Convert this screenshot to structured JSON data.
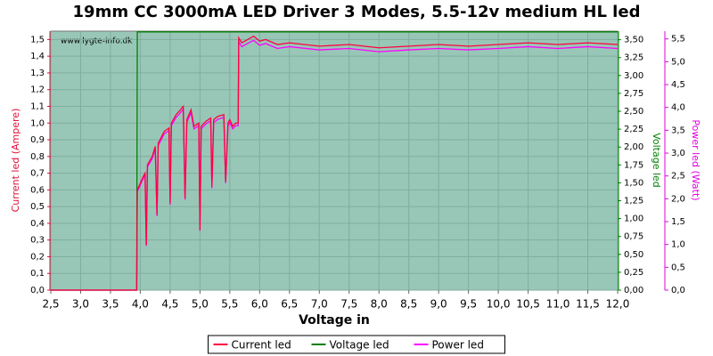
{
  "chart_data": {
    "type": "line",
    "title": "19mm CC 3000mA LED Driver 3 Modes, 5.5-12v medium HL led",
    "annotation": "www.lygte-info.dk",
    "x_label": "Voltage in",
    "y_label": "Current led (Ampere)",
    "y2_label": "Voltage led",
    "y3_label": "Power led (Watt)",
    "x": [
      2.5,
      3.94,
      3.95,
      4.0,
      4.05,
      4.08,
      4.1,
      4.12,
      4.2,
      4.25,
      4.28,
      4.3,
      4.33,
      4.4,
      4.48,
      4.5,
      4.52,
      4.6,
      4.65,
      4.72,
      4.75,
      4.78,
      4.85,
      4.9,
      4.98,
      5.0,
      5.02,
      5.1,
      5.18,
      5.2,
      5.23,
      5.3,
      5.4,
      5.43,
      5.47,
      5.5,
      5.55,
      5.6,
      5.64,
      5.65,
      5.7,
      5.8,
      5.9,
      6.0,
      6.1,
      6.3,
      6.5,
      7.0,
      7.5,
      8.0,
      8.5,
      9.0,
      9.5,
      10.0,
      10.5,
      11.0,
      11.5,
      12.0
    ],
    "series": [
      {
        "name": "Current led",
        "color": "#ff0040",
        "axis": "y",
        "values": [
          0,
          0,
          0.6,
          0.64,
          0.68,
          0.7,
          0.27,
          0.75,
          0.8,
          0.86,
          0.45,
          0.88,
          0.9,
          0.95,
          0.97,
          0.52,
          1.0,
          1.05,
          1.07,
          1.1,
          0.55,
          1.02,
          1.08,
          0.98,
          1.0,
          0.36,
          0.98,
          1.01,
          1.03,
          0.62,
          1.02,
          1.04,
          1.05,
          0.65,
          1.0,
          1.02,
          0.98,
          1.0,
          1.0,
          1.51,
          1.48,
          1.5,
          1.52,
          1.49,
          1.5,
          1.47,
          1.48,
          1.46,
          1.47,
          1.45,
          1.46,
          1.47,
          1.46,
          1.47,
          1.48,
          1.47,
          1.48,
          1.47
        ]
      },
      {
        "name": "Voltage led",
        "color": "#008000",
        "axis": "y2",
        "values": [
          0,
          0,
          3.61,
          3.61,
          3.61,
          3.61,
          3.61,
          3.61,
          3.61,
          3.61,
          3.61,
          3.61,
          3.61,
          3.61,
          3.61,
          3.61,
          3.61,
          3.61,
          3.61,
          3.61,
          3.61,
          3.61,
          3.61,
          3.61,
          3.61,
          3.61,
          3.61,
          3.61,
          3.61,
          3.61,
          3.61,
          3.61,
          3.61,
          3.61,
          3.61,
          3.61,
          3.61,
          3.61,
          3.61,
          3.61,
          3.61,
          3.61,
          3.61,
          3.61,
          3.61,
          3.61,
          3.61,
          3.61,
          3.61,
          3.61,
          3.61,
          3.61,
          3.61,
          3.61,
          3.61,
          3.61,
          3.61,
          3.61
        ]
      },
      {
        "name": "Power led",
        "color": "#ff00ff",
        "axis": "y3",
        "values": [
          0,
          0,
          2.16,
          2.3,
          2.45,
          2.52,
          0.97,
          2.7,
          2.88,
          3.1,
          1.62,
          3.17,
          3.24,
          3.42,
          3.49,
          1.87,
          3.6,
          3.78,
          3.85,
          3.96,
          1.98,
          3.67,
          3.89,
          3.53,
          3.6,
          1.3,
          3.53,
          3.64,
          3.71,
          2.23,
          3.67,
          3.74,
          3.78,
          2.34,
          3.6,
          3.67,
          3.53,
          3.6,
          3.6,
          5.44,
          5.33,
          5.4,
          5.47,
          5.36,
          5.4,
          5.29,
          5.33,
          5.26,
          5.29,
          5.22,
          5.26,
          5.29,
          5.26,
          5.29,
          5.33,
          5.29,
          5.33,
          5.29
        ]
      }
    ],
    "xlim": [
      2.5,
      12.0
    ],
    "xticks": [
      {
        "value": 2.5,
        "label": "2,5"
      },
      {
        "value": 3.0,
        "label": "3,0"
      },
      {
        "value": 3.5,
        "label": "3,5"
      },
      {
        "value": 4.0,
        "label": "4,0"
      },
      {
        "value": 4.5,
        "label": "4,5"
      },
      {
        "value": 5.0,
        "label": "5,0"
      },
      {
        "value": 5.5,
        "label": "5,5"
      },
      {
        "value": 6.0,
        "label": "6,0"
      },
      {
        "value": 6.5,
        "label": "6,5"
      },
      {
        "value": 7.0,
        "label": "7,0"
      },
      {
        "value": 7.5,
        "label": "7,5"
      },
      {
        "value": 8.0,
        "label": "8,0"
      },
      {
        "value": 8.5,
        "label": "8,5"
      },
      {
        "value": 9.0,
        "label": "9,0"
      },
      {
        "value": 9.5,
        "label": "9,5"
      },
      {
        "value": 10.0,
        "label": "10,0"
      },
      {
        "value": 10.5,
        "label": "10,5"
      },
      {
        "value": 11.0,
        "label": "11,0"
      },
      {
        "value": 11.5,
        "label": "11,5"
      },
      {
        "value": 12.0,
        "label": "12,0"
      }
    ],
    "ylim": [
      0,
      1.55
    ],
    "yticks": [
      {
        "value": 0,
        "label": "0,0"
      },
      {
        "value": 0.1,
        "label": "0,1"
      },
      {
        "value": 0.2,
        "label": "0,2"
      },
      {
        "value": 0.3,
        "label": "0,3"
      },
      {
        "value": 0.4,
        "label": "0,4"
      },
      {
        "value": 0.5,
        "label": "0,5"
      },
      {
        "value": 0.6,
        "label": "0,6"
      },
      {
        "value": 0.7,
        "label": "0,7"
      },
      {
        "value": 0.8,
        "label": "0,8"
      },
      {
        "value": 0.9,
        "label": "0,9"
      },
      {
        "value": 1.0,
        "label": "1,0"
      },
      {
        "value": 1.1,
        "label": "1,1"
      },
      {
        "value": 1.2,
        "label": "1,2"
      },
      {
        "value": 1.3,
        "label": "1,3"
      },
      {
        "value": 1.4,
        "label": "1,4"
      },
      {
        "value": 1.5,
        "label": "1,5"
      }
    ],
    "y2lim": [
      0,
      3.62
    ],
    "y2ticks": [
      {
        "value": 0,
        "label": "0,00"
      },
      {
        "value": 0.25,
        "label": "0,25"
      },
      {
        "value": 0.5,
        "label": "0,50"
      },
      {
        "value": 0.75,
        "label": "0,75"
      },
      {
        "value": 1.0,
        "label": "1,00"
      },
      {
        "value": 1.25,
        "label": "1,25"
      },
      {
        "value": 1.5,
        "label": "1,50"
      },
      {
        "value": 1.75,
        "label": "1,75"
      },
      {
        "value": 2.0,
        "label": "2,00"
      },
      {
        "value": 2.25,
        "label": "2,25"
      },
      {
        "value": 2.5,
        "label": "2,50"
      },
      {
        "value": 2.75,
        "label": "2,75"
      },
      {
        "value": 3.0,
        "label": "3,00"
      },
      {
        "value": 3.25,
        "label": "3,25"
      },
      {
        "value": 3.5,
        "label": "3,50"
      }
    ],
    "y3lim": [
      0,
      5.67
    ],
    "y3ticks": [
      {
        "value": 0,
        "label": "0,0"
      },
      {
        "value": 0.5,
        "label": "0,5"
      },
      {
        "value": 1.0,
        "label": "1,0"
      },
      {
        "value": 1.5,
        "label": "1,5"
      },
      {
        "value": 2.0,
        "label": "2,0"
      },
      {
        "value": 2.5,
        "label": "2,5"
      },
      {
        "value": 3.0,
        "label": "3,0"
      },
      {
        "value": 3.5,
        "label": "3,5"
      },
      {
        "value": 4.0,
        "label": "4,0"
      },
      {
        "value": 4.5,
        "label": "4,5"
      },
      {
        "value": 5.0,
        "label": "5,0"
      },
      {
        "value": 5.5,
        "label": "5,5"
      }
    ],
    "grid": true
  }
}
